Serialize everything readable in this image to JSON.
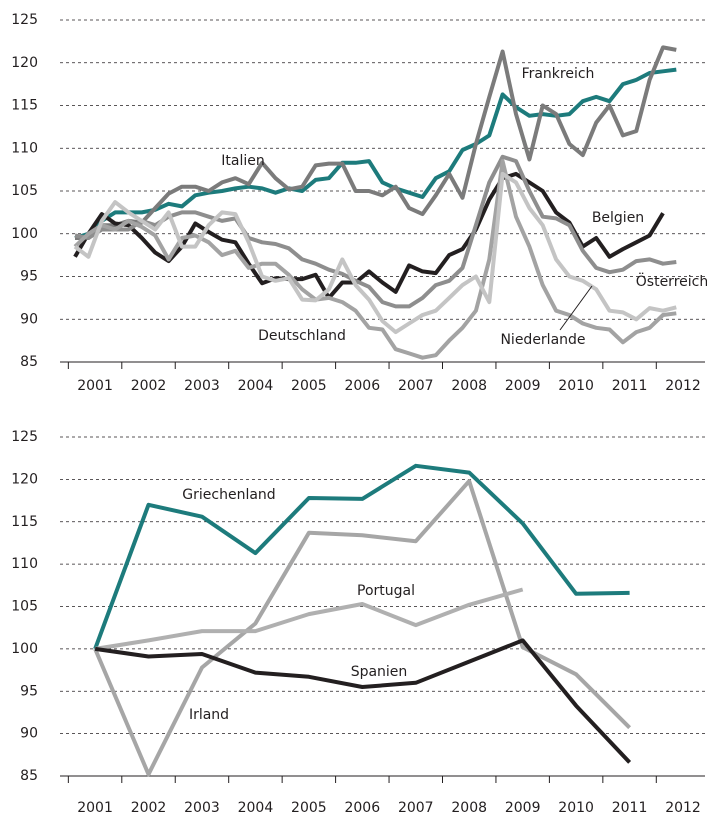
{
  "chart_data": [
    {
      "type": "line",
      "x": [
        2000.625,
        2000.875,
        2001.125,
        2001.375,
        2001.625,
        2001.875,
        2002.125,
        2002.375,
        2002.625,
        2002.875,
        2003.125,
        2003.375,
        2003.625,
        2003.875,
        2004.125,
        2004.375,
        2004.625,
        2004.875,
        2005.125,
        2005.375,
        2005.625,
        2005.875,
        2006.125,
        2006.375,
        2006.625,
        2006.875,
        2007.125,
        2007.375,
        2007.625,
        2007.875,
        2008.125,
        2008.375,
        2008.625,
        2008.875,
        2009.125,
        2009.375,
        2009.625,
        2009.875,
        2010.125,
        2010.375,
        2010.625,
        2010.875,
        2011.125,
        2011.375,
        2011.625,
        2011.875
      ],
      "xlim": [
        2000.4,
        2012.4
      ],
      "xticks": [
        2001,
        2002,
        2003,
        2004,
        2005,
        2006,
        2007,
        2008,
        2009,
        2010,
        2011,
        2012
      ],
      "ylim": [
        85,
        125
      ],
      "yticks": [
        85,
        90,
        95,
        100,
        105,
        110,
        115,
        120,
        125
      ],
      "grid": true,
      "series": [
        {
          "name": "Frankreich",
          "color": "#1d7b7c",
          "values": [
            99.5,
            100,
            101.5,
            102.5,
            102.5,
            102.5,
            102.8,
            103.5,
            103.2,
            104.5,
            104.8,
            105,
            105.3,
            105.5,
            105.3,
            104.8,
            105.3,
            105,
            106.3,
            106.5,
            108.3,
            108.3,
            108.5,
            106,
            105.3,
            104.8,
            104.3,
            106.5,
            107.3,
            109.8,
            110.5,
            111.5,
            116.3,
            114.8,
            113.8,
            114,
            113.8,
            114,
            115.5,
            116,
            115.5,
            117.5,
            118,
            118.8,
            119,
            119.2
          ]
        },
        {
          "name": "Italien",
          "color": "#7b7b7b",
          "values": [
            99.5,
            99.5,
            101,
            101,
            101.5,
            101.3,
            103,
            104.7,
            105.5,
            105.5,
            105,
            106,
            106.5,
            105.8,
            108.3,
            106.5,
            105.2,
            105.5,
            108,
            108.2,
            108.2,
            105,
            105,
            104.5,
            105.5,
            103,
            102.3,
            104.5,
            107,
            104.2,
            110.5,
            116,
            121.3,
            114,
            108.7,
            115,
            114,
            110.5,
            109.2,
            113,
            115,
            111.5,
            112,
            118,
            121.8,
            121.5
          ]
        },
        {
          "name": "Belgien",
          "color": "#231f20",
          "values": [
            97.3,
            100,
            102.3,
            101.2,
            101,
            99.5,
            97.8,
            96.8,
            98.5,
            101.2,
            100.2,
            99.3,
            99,
            96.5,
            94.2,
            94.8,
            94.7,
            94.7,
            95.2,
            92.5,
            94.3,
            94.3,
            95.6,
            94.3,
            93.2,
            96.3,
            95.6,
            95.4,
            97.5,
            98.2,
            100.5,
            104,
            106.5,
            107,
            106,
            105,
            102.5,
            101.3,
            98.5,
            99.5,
            97.3,
            98.2,
            99,
            99.8,
            102.4,
            null
          ]
        },
        {
          "name": "Österreich",
          "color": "#8e8e8e",
          "values": [
            99.8,
            99.5,
            100.5,
            100.5,
            100.5,
            101.5,
            101,
            102,
            102.5,
            102.5,
            102,
            101.5,
            101.8,
            99.5,
            99,
            98.8,
            98.3,
            97,
            96.5,
            95.8,
            95.3,
            94.5,
            93.8,
            92,
            91.5,
            91.5,
            92.5,
            94,
            94.5,
            96,
            101,
            106,
            109,
            108.5,
            105,
            102,
            101.8,
            101,
            98,
            96,
            95.5,
            95.8,
            96.8,
            97,
            96.5,
            96.7
          ]
        },
        {
          "name": "Deutschland",
          "color": "#a3a3a3",
          "values": [
            98.5,
            100,
            101,
            100.5,
            101.5,
            100.8,
            99.8,
            97,
            99.5,
            99.8,
            99,
            97.5,
            98,
            96,
            96.5,
            96.5,
            95.2,
            93.5,
            92.3,
            92.5,
            92,
            91,
            89,
            88.8,
            86.5,
            86,
            85.5,
            85.8,
            87.5,
            89,
            91,
            97,
            108.5,
            102,
            98.5,
            94,
            91,
            90.5,
            89.5,
            89,
            88.8,
            87.3,
            88.5,
            89,
            90.5,
            90.7
          ]
        },
        {
          "name": "Niederlande",
          "color": "#c4c4c4",
          "values": [
            98.5,
            97.3,
            101.5,
            103.7,
            102.5,
            101.5,
            100.5,
            102.5,
            98.5,
            98.5,
            101,
            102.5,
            102.3,
            99,
            95,
            94.5,
            94.8,
            92.3,
            92.2,
            93.5,
            97,
            94,
            92.3,
            89.8,
            88.5,
            89.5,
            90.5,
            91,
            92.5,
            94,
            95,
            92,
            107,
            106,
            103,
            101,
            97,
            95,
            94.5,
            93.5,
            91,
            90.8,
            90,
            91.3,
            91,
            91.4
          ]
        }
      ]
    },
    {
      "type": "line",
      "x": [
        2001,
        2002,
        2003,
        2004,
        2005,
        2006,
        2007,
        2008,
        2009,
        2010,
        2011
      ],
      "xlim": [
        2000.4,
        2012.4
      ],
      "xticks": [
        2001,
        2002,
        2003,
        2004,
        2005,
        2006,
        2007,
        2008,
        2009,
        2010,
        2011,
        2012
      ],
      "ylim": [
        85,
        125
      ],
      "yticks": [
        85,
        90,
        95,
        100,
        105,
        110,
        115,
        120,
        125
      ],
      "grid": true,
      "series": [
        {
          "name": "Griechenland",
          "color": "#1d7b7c",
          "values": [
            100,
            117,
            115.6,
            111.3,
            117.8,
            117.7,
            121.6,
            120.8,
            114.8,
            106.5,
            106.6
          ]
        },
        {
          "name": "Irland",
          "color": "#a6a6a6",
          "values": [
            100,
            85.2,
            97.8,
            103,
            113.7,
            113.4,
            112.7,
            119.8,
            100.2,
            97,
            90.7
          ]
        },
        {
          "name": "Portugal",
          "color": "#b0b0b0",
          "values": [
            100,
            101,
            102.1,
            102.1,
            104.1,
            105.3,
            102.8,
            105.2,
            107,
            null,
            null
          ]
        },
        {
          "name": "Spanien",
          "color": "#231f20",
          "values": [
            100,
            99.1,
            99.4,
            97.2,
            96.7,
            95.5,
            96,
            98.5,
            101,
            93.3,
            86.6
          ]
        }
      ]
    }
  ]
}
